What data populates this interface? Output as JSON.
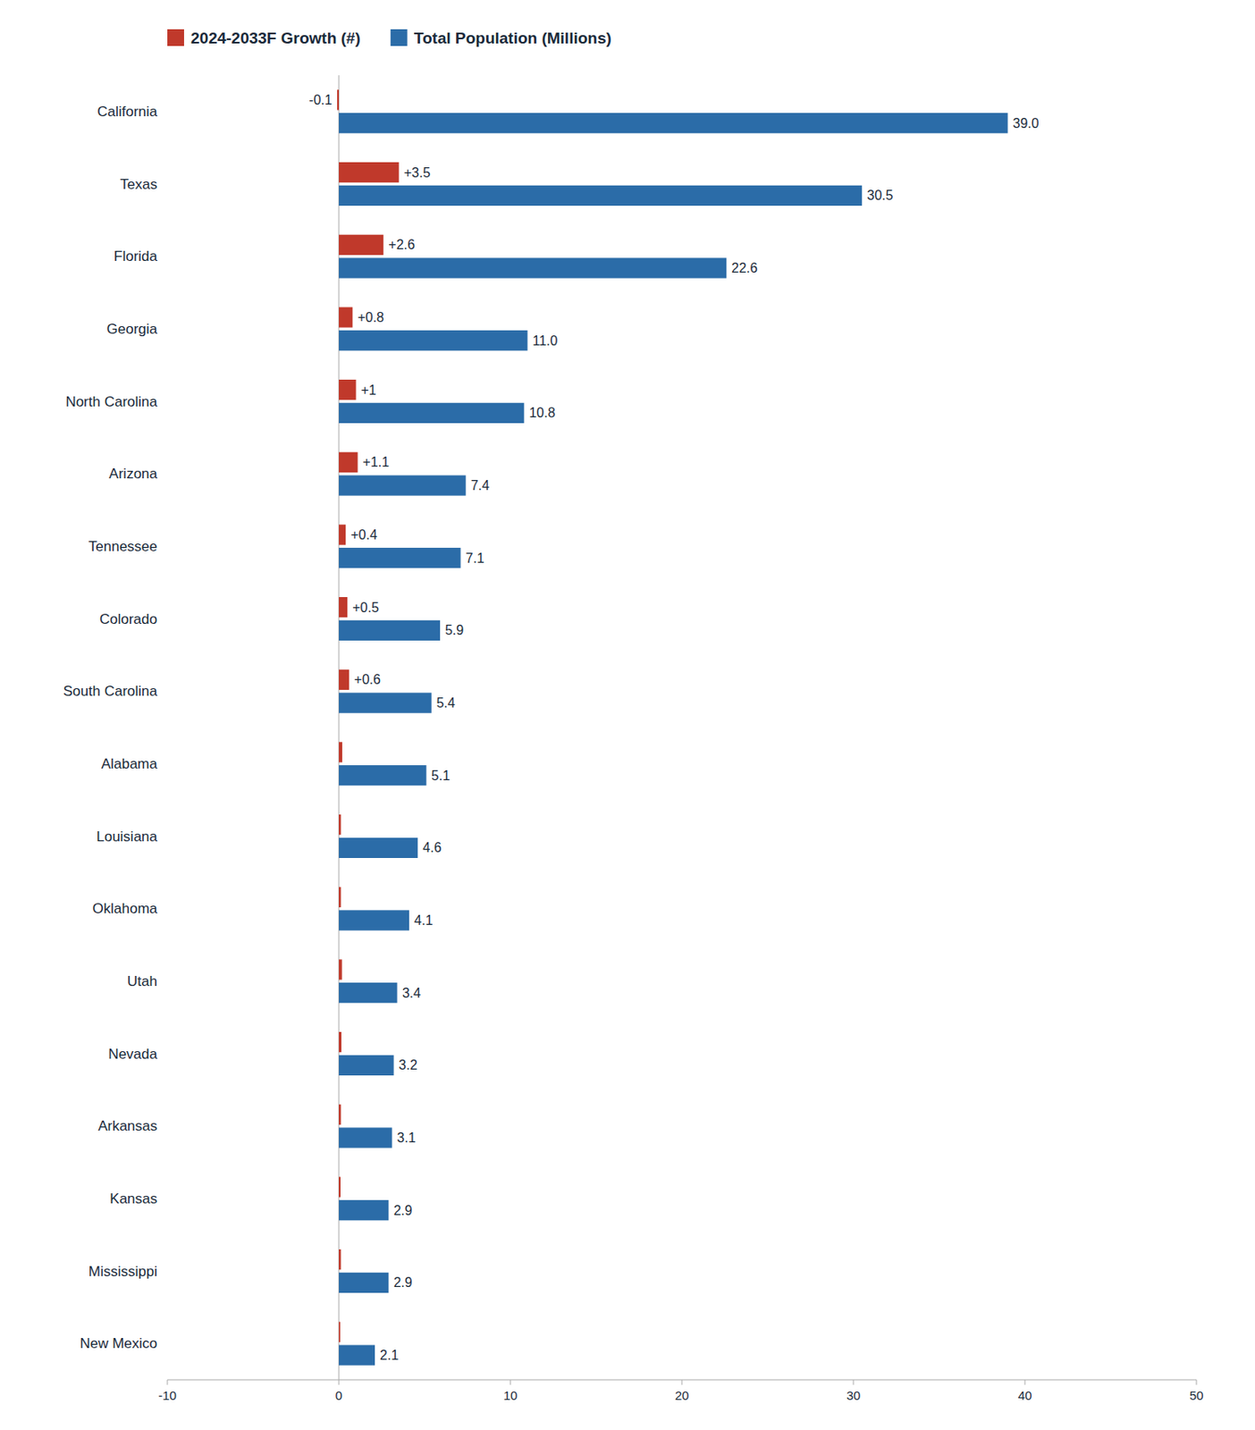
{
  "chart_data": {
    "type": "bar",
    "orientation": "horizontal",
    "categories": [
      "California",
      "Texas",
      "Florida",
      "Georgia",
      "North Carolina",
      "Arizona",
      "Tennessee",
      "Colorado",
      "South Carolina",
      "Alabama",
      "Louisiana",
      "Oklahoma",
      "Utah",
      "Nevada",
      "Arkansas",
      "Kansas",
      "Mississippi",
      "New Mexico"
    ],
    "series": [
      {
        "name": "2024-2033F Growth (#)",
        "color": "#C0392B",
        "values": [
          -0.1,
          3.5,
          2.6,
          0.8,
          1.0,
          1.1,
          0.4,
          0.5,
          0.6,
          0.2,
          0.12,
          0.12,
          0.18,
          0.15,
          0.12,
          0.1,
          0.12,
          0.08
        ],
        "value_labels": [
          "-0.1",
          "+3.5",
          "+2.6",
          "+0.8",
          "+1",
          "+1.1",
          "+0.4",
          "+0.5",
          "+0.6",
          null,
          null,
          null,
          null,
          null,
          null,
          null,
          null,
          null
        ]
      },
      {
        "name": "Total Population (Millions)",
        "color": "#2B6CA8",
        "values": [
          39.0,
          30.5,
          22.6,
          11.0,
          10.8,
          7.4,
          7.1,
          5.9,
          5.4,
          5.1,
          4.6,
          4.1,
          3.4,
          3.2,
          3.1,
          2.9,
          2.9,
          2.1
        ],
        "value_labels": [
          "39.0",
          "30.5",
          "22.6",
          "11.0",
          "10.8",
          "7.4",
          "7.1",
          "5.9",
          "5.4",
          "5.1",
          "4.6",
          "4.1",
          "3.4",
          "3.2",
          "3.1",
          "2.9",
          "2.9",
          "2.1"
        ]
      }
    ],
    "xlim": [
      -10,
      50
    ],
    "xticks": [
      -10,
      0,
      10,
      20,
      30,
      40,
      50
    ],
    "grid": false,
    "legend": "upper left",
    "data_labels": true
  }
}
